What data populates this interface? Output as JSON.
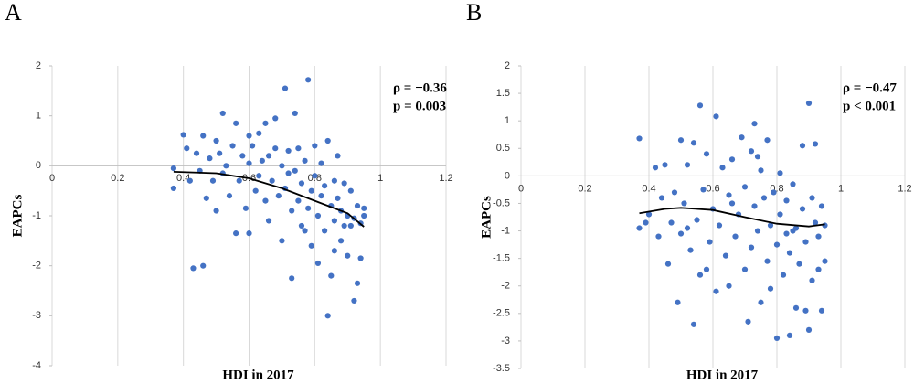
{
  "chart_data": [
    {
      "type": "scatter",
      "title": "A",
      "x_label": "HDI in 2017",
      "y_label": "EAPCs",
      "color": "#4472c4",
      "trend_color": "#000000",
      "annotations": [
        "ρ = −0.36",
        "p = 0.003"
      ],
      "xlim": [
        0,
        1.2
      ],
      "xticks": [
        0,
        0.2,
        0.4,
        0.6,
        0.8,
        1,
        1.2
      ],
      "ylim": [
        -4,
        2
      ],
      "yticks": [
        -4,
        -3,
        -2,
        -1,
        0,
        1,
        2
      ],
      "grid": true,
      "x": [
        0.37,
        0.37,
        0.4,
        0.41,
        0.42,
        0.43,
        0.44,
        0.45,
        0.46,
        0.46,
        0.47,
        0.48,
        0.49,
        0.5,
        0.51,
        0.52,
        0.52,
        0.53,
        0.54,
        0.55,
        0.56,
        0.56,
        0.57,
        0.58,
        0.59,
        0.6,
        0.6,
        0.61,
        0.62,
        0.63,
        0.63,
        0.64,
        0.65,
        0.65,
        0.66,
        0.67,
        0.68,
        0.69,
        0.7,
        0.7,
        0.71,
        0.71,
        0.72,
        0.73,
        0.73,
        0.74,
        0.74,
        0.75,
        0.75,
        0.76,
        0.76,
        0.77,
        0.78,
        0.78,
        0.79,
        0.79,
        0.8,
        0.8,
        0.81,
        0.81,
        0.82,
        0.82,
        0.83,
        0.83,
        0.84,
        0.84,
        0.85,
        0.85,
        0.86,
        0.86,
        0.87,
        0.87,
        0.88,
        0.88,
        0.89,
        0.89,
        0.9,
        0.9,
        0.91,
        0.91,
        0.92,
        0.92,
        0.93,
        0.93,
        0.94,
        0.94,
        0.95,
        0.95,
        0.6,
        0.68,
        0.72,
        0.77,
        0.5,
        0.66,
        0.86
      ],
      "values": [
        -0.05,
        -0.45,
        0.62,
        0.35,
        -0.3,
        -2.05,
        0.25,
        -0.1,
        -2.0,
        0.6,
        -0.65,
        0.15,
        -0.3,
        0.5,
        0.25,
        1.05,
        -0.15,
        0.0,
        -0.6,
        0.4,
        -1.35,
        0.85,
        -0.3,
        0.2,
        -0.85,
        -1.35,
        0.05,
        0.4,
        -0.5,
        0.65,
        -0.2,
        0.1,
        -0.7,
        0.85,
        -1.1,
        -0.3,
        0.35,
        -0.6,
        0.0,
        -1.5,
        1.55,
        -0.45,
        0.3,
        -0.9,
        -2.25,
        1.05,
        -0.1,
        -0.7,
        0.35,
        -1.2,
        -0.35,
        0.1,
        1.72,
        -0.85,
        -0.5,
        -1.6,
        0.4,
        -0.2,
        -1.0,
        -1.95,
        -0.6,
        0.05,
        -1.3,
        -0.4,
        0.5,
        -3.0,
        -0.8,
        -2.2,
        -0.3,
        -1.1,
        -0.65,
        0.2,
        -1.5,
        -0.9,
        -0.35,
        -1.2,
        -1.0,
        -1.8,
        -1.2,
        -0.5,
        -2.7,
        -1.05,
        -0.8,
        -2.35,
        -1.15,
        -1.85,
        -0.85,
        -1.0,
        0.6,
        0.95,
        -0.15,
        -1.3,
        -0.9,
        0.2,
        -1.7
      ],
      "trend": {
        "x": [
          0.37,
          0.5,
          0.6,
          0.7,
          0.8,
          0.9,
          0.95
        ],
        "values": [
          -0.12,
          -0.15,
          -0.25,
          -0.45,
          -0.7,
          -0.95,
          -1.22
        ]
      }
    },
    {
      "type": "scatter",
      "title": "B",
      "x_label": "HDI in 2017",
      "y_label": "EAPCs",
      "color": "#4472c4",
      "trend_color": "#000000",
      "annotations": [
        "ρ = −0.47",
        "p  < 0.001"
      ],
      "xlim": [
        0,
        1.2
      ],
      "xticks": [
        0,
        0.2,
        0.4,
        0.6,
        0.8,
        1,
        1.2
      ],
      "ylim": [
        -3.5,
        2
      ],
      "yticks": [
        -3.5,
        -3,
        -2.5,
        -2,
        -1.5,
        -1,
        -0.5,
        0,
        0.5,
        1,
        1.5,
        2
      ],
      "grid": true,
      "x": [
        0.37,
        0.37,
        0.39,
        0.4,
        0.42,
        0.43,
        0.44,
        0.45,
        0.46,
        0.47,
        0.48,
        0.49,
        0.5,
        0.5,
        0.51,
        0.52,
        0.53,
        0.54,
        0.54,
        0.55,
        0.56,
        0.56,
        0.57,
        0.58,
        0.59,
        0.6,
        0.61,
        0.61,
        0.62,
        0.63,
        0.64,
        0.65,
        0.65,
        0.66,
        0.67,
        0.68,
        0.69,
        0.7,
        0.7,
        0.71,
        0.72,
        0.72,
        0.73,
        0.73,
        0.74,
        0.75,
        0.75,
        0.76,
        0.77,
        0.77,
        0.78,
        0.78,
        0.79,
        0.8,
        0.8,
        0.81,
        0.81,
        0.82,
        0.83,
        0.83,
        0.84,
        0.84,
        0.85,
        0.86,
        0.86,
        0.87,
        0.88,
        0.88,
        0.89,
        0.89,
        0.9,
        0.9,
        0.91,
        0.91,
        0.92,
        0.92,
        0.93,
        0.93,
        0.94,
        0.94,
        0.95,
        0.95,
        0.58,
        0.66,
        0.74,
        0.52,
        0.85
      ],
      "values": [
        0.68,
        -0.95,
        -0.85,
        -0.7,
        0.15,
        -1.1,
        -0.4,
        0.2,
        -1.6,
        -0.85,
        -0.3,
        -2.3,
        0.65,
        -1.05,
        -0.5,
        0.2,
        -1.35,
        -2.7,
        0.6,
        -0.8,
        1.28,
        -1.8,
        -0.25,
        0.4,
        -1.2,
        -0.6,
        1.08,
        -2.1,
        -0.9,
        0.15,
        -1.45,
        -0.35,
        -2.0,
        0.3,
        -1.1,
        -0.7,
        0.7,
        -1.7,
        -0.2,
        -2.65,
        0.45,
        -1.3,
        0.95,
        -0.55,
        -1.0,
        -2.3,
        0.1,
        -0.4,
        -1.55,
        0.65,
        -0.9,
        -2.05,
        -0.3,
        -1.25,
        -2.95,
        0.05,
        -0.7,
        -1.8,
        -1.05,
        -0.45,
        -2.9,
        -1.4,
        -0.15,
        -0.95,
        -2.4,
        -1.6,
        -0.6,
        0.55,
        -2.45,
        -1.2,
        1.32,
        -2.8,
        -0.4,
        -1.9,
        -0.85,
        0.58,
        -1.7,
        -1.1,
        -2.45,
        -0.55,
        -1.55,
        -0.9,
        -1.7,
        -0.5,
        0.35,
        -0.95,
        -1.0
      ],
      "trend": {
        "x": [
          0.37,
          0.45,
          0.5,
          0.6,
          0.7,
          0.8,
          0.9,
          0.95
        ],
        "values": [
          -0.68,
          -0.6,
          -0.58,
          -0.62,
          -0.75,
          -0.87,
          -0.92,
          -0.88
        ]
      }
    }
  ]
}
